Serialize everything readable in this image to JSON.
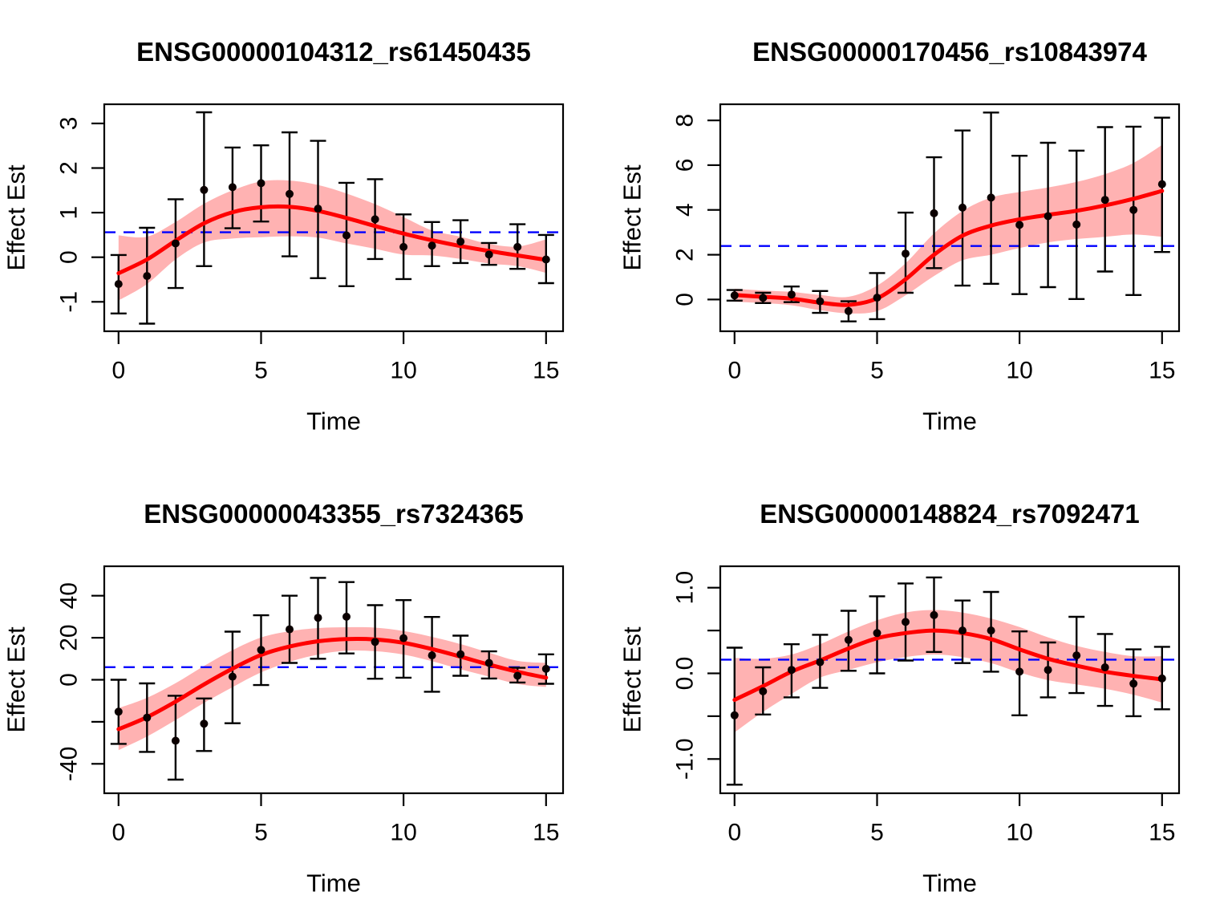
{
  "figure": {
    "colors": {
      "background": "#FFFFFF",
      "smooth_curve": "#FF0000",
      "confidence_band": "rgba(255,0,0,0.30)",
      "error_bar": "#000000",
      "data_point": "#0B0000",
      "threshold_line": "#0000FF",
      "axis": "#000000"
    }
  },
  "chart_data": [
    {
      "type": "scatter",
      "subtype": "points-errorbars-smooth-band",
      "title": "ENSG00000104312_rs61450435",
      "xlabel": "Time",
      "ylabel": "Effect Est",
      "x": [
        0,
        1,
        2,
        3,
        4,
        5,
        6,
        7,
        8,
        9,
        10,
        11,
        12,
        13,
        14,
        15
      ],
      "points": [
        -0.6,
        -0.42,
        0.31,
        1.51,
        1.57,
        1.66,
        1.42,
        1.09,
        0.49,
        0.85,
        0.23,
        0.26,
        0.35,
        0.06,
        0.23,
        -0.05
      ],
      "ci_low": [
        -1.26,
        -1.49,
        -0.69,
        -0.2,
        0.65,
        0.8,
        0.02,
        -0.47,
        -0.65,
        -0.04,
        -0.49,
        -0.2,
        -0.13,
        -0.17,
        -0.26,
        -0.58
      ],
      "ci_high": [
        0.05,
        0.66,
        1.3,
        3.25,
        2.46,
        2.51,
        2.8,
        2.61,
        1.67,
        1.75,
        0.96,
        0.79,
        0.83,
        0.32,
        0.74,
        0.5
      ],
      "smooth": [
        -0.36,
        -0.05,
        0.37,
        0.76,
        1.01,
        1.12,
        1.13,
        1.04,
        0.88,
        0.7,
        0.53,
        0.38,
        0.25,
        0.14,
        0.04,
        -0.06
      ],
      "band_low": [
        -0.97,
        -0.6,
        -0.05,
        0.33,
        0.42,
        0.45,
        0.47,
        0.44,
        0.31,
        0.19,
        0.06,
        0.04,
        -0.04,
        -0.14,
        -0.2,
        -0.35
      ],
      "band_high": [
        0.49,
        0.46,
        0.79,
        1.2,
        1.5,
        1.7,
        1.72,
        1.62,
        1.43,
        1.19,
        0.9,
        0.6,
        0.46,
        0.3,
        0.24,
        0.4
      ],
      "threshold": 0.56,
      "xlim": [
        -0.5,
        15.6
      ],
      "ylim": [
        -1.66,
        3.43
      ],
      "xticks": [
        0,
        5,
        10,
        15
      ],
      "xtick_labels": [
        "0",
        "5",
        "10",
        "15"
      ],
      "yticks": [
        -1,
        0,
        1,
        2,
        3
      ],
      "ytick_labels": [
        "-1",
        "0",
        "1",
        "2",
        "3"
      ],
      "grid": false,
      "legend": null
    },
    {
      "type": "scatter",
      "subtype": "points-errorbars-smooth-band",
      "title": "ENSG00000170456_rs10843974",
      "xlabel": "Time",
      "ylabel": "Effect Est",
      "x": [
        0,
        1,
        2,
        3,
        4,
        5,
        6,
        7,
        8,
        9,
        10,
        11,
        12,
        13,
        14,
        15
      ],
      "points": [
        0.18,
        0.07,
        0.22,
        -0.08,
        -0.52,
        0.08,
        2.05,
        3.85,
        4.1,
        4.55,
        3.33,
        3.72,
        3.35,
        4.45,
        4.0,
        5.15
      ],
      "ci_low": [
        -0.05,
        -0.16,
        -0.12,
        -0.6,
        -0.98,
        -0.88,
        0.3,
        1.4,
        0.62,
        0.7,
        0.24,
        0.55,
        0.02,
        1.25,
        0.2,
        2.12
      ],
      "ci_high": [
        0.42,
        0.3,
        0.58,
        0.38,
        -0.08,
        1.18,
        3.88,
        6.35,
        7.55,
        8.35,
        6.42,
        7.0,
        6.65,
        7.7,
        7.72,
        8.12
      ],
      "smooth": [
        0.2,
        0.12,
        0.04,
        -0.14,
        -0.24,
        0.05,
        0.9,
        2.0,
        2.85,
        3.3,
        3.58,
        3.78,
        3.96,
        4.2,
        4.5,
        4.85
      ],
      "band_low": [
        -0.1,
        -0.16,
        -0.26,
        -0.48,
        -0.62,
        -0.52,
        0.18,
        1.05,
        1.75,
        2.0,
        2.3,
        2.55,
        2.7,
        2.8,
        2.9,
        2.8
      ],
      "band_high": [
        0.48,
        0.4,
        0.34,
        0.2,
        0.12,
        0.62,
        1.62,
        2.95,
        3.95,
        4.55,
        4.8,
        5.0,
        5.25,
        5.6,
        6.1,
        6.9
      ],
      "threshold": 2.39,
      "xlim": [
        -0.5,
        15.6
      ],
      "ylim": [
        -1.42,
        8.72
      ],
      "xticks": [
        0,
        5,
        10,
        15
      ],
      "xtick_labels": [
        "0",
        "5",
        "10",
        "15"
      ],
      "yticks": [
        0,
        2,
        4,
        6,
        8
      ],
      "ytick_labels": [
        "0",
        "2",
        "4",
        "6",
        "8"
      ],
      "grid": false,
      "legend": null
    },
    {
      "type": "scatter",
      "subtype": "points-errorbars-smooth-band",
      "title": "ENSG00000043355_rs7324365",
      "xlabel": "Time",
      "ylabel": "Effect Est",
      "x": [
        0,
        1,
        2,
        3,
        4,
        5,
        6,
        7,
        8,
        9,
        10,
        11,
        12,
        13,
        14,
        15
      ],
      "points": [
        -15.2,
        -18.0,
        -29.0,
        -20.9,
        1.5,
        14.2,
        24.0,
        29.5,
        30.0,
        18.0,
        19.8,
        11.6,
        12.1,
        8.0,
        1.9,
        5.2
      ],
      "ci_low": [
        -30.5,
        -34.3,
        -47.5,
        -33.9,
        -20.7,
        -2.5,
        8.0,
        10.0,
        12.5,
        0.5,
        1.0,
        -5.7,
        1.9,
        0.6,
        -1.3,
        -1.9
      ],
      "ci_high": [
        0.0,
        -1.7,
        -7.6,
        -8.9,
        22.9,
        30.7,
        40.0,
        48.5,
        46.5,
        35.5,
        37.9,
        29.9,
        21.0,
        13.5,
        5.7,
        12.1
      ],
      "smooth": [
        -23.5,
        -17.8,
        -10.4,
        -2.2,
        5.3,
        11.8,
        15.8,
        18.3,
        19.4,
        19.2,
        17.6,
        14.6,
        11.0,
        7.2,
        3.8,
        1.0
      ],
      "band_low": [
        -33.5,
        -27.0,
        -19.2,
        -11.0,
        -3.5,
        3.5,
        8.5,
        12.0,
        13.8,
        13.6,
        12.0,
        8.8,
        5.0,
        1.5,
        -2.0,
        -3.4
      ],
      "band_high": [
        -13.5,
        -8.6,
        -1.6,
        6.6,
        14.1,
        20.1,
        23.1,
        24.6,
        25.0,
        24.8,
        23.2,
        20.4,
        17.0,
        12.9,
        9.0,
        8.0
      ],
      "threshold": 6.0,
      "xlim": [
        -0.5,
        15.6
      ],
      "ylim": [
        -54,
        54
      ],
      "xticks": [
        0,
        5,
        10,
        15
      ],
      "xtick_labels": [
        "0",
        "5",
        "10",
        "15"
      ],
      "yticks": [
        -40,
        -20,
        0,
        20,
        40
      ],
      "ytick_labels": [
        "-40",
        "",
        "0",
        "20",
        "40"
      ],
      "grid": false,
      "legend": null
    },
    {
      "type": "scatter",
      "subtype": "points-errorbars-smooth-band",
      "title": "ENSG00000148824_rs7092471",
      "xlabel": "Time",
      "ylabel": "Effect Est",
      "x": [
        0,
        1,
        2,
        3,
        4,
        5,
        6,
        7,
        8,
        9,
        10,
        11,
        12,
        13,
        14,
        15
      ],
      "points": [
        -0.49,
        -0.21,
        0.04,
        0.13,
        0.39,
        0.47,
        0.6,
        0.68,
        0.5,
        0.5,
        0.02,
        0.04,
        0.21,
        0.07,
        -0.12,
        -0.06
      ],
      "ci_low": [
        -1.3,
        -0.48,
        -0.28,
        -0.17,
        0.03,
        0.0,
        0.15,
        0.25,
        0.12,
        0.02,
        -0.49,
        -0.28,
        -0.23,
        -0.38,
        -0.5,
        -0.42
      ],
      "ci_high": [
        0.3,
        0.07,
        0.34,
        0.45,
        0.73,
        0.9,
        1.05,
        1.12,
        0.85,
        0.95,
        0.49,
        0.36,
        0.66,
        0.46,
        0.28,
        0.31
      ],
      "smooth": [
        -0.31,
        -0.15,
        0.02,
        0.15,
        0.29,
        0.41,
        0.47,
        0.5,
        0.47,
        0.4,
        0.28,
        0.17,
        0.09,
        0.02,
        -0.03,
        -0.07
      ],
      "band_low": [
        -0.69,
        -0.45,
        -0.24,
        -0.05,
        0.04,
        0.13,
        0.19,
        0.22,
        0.19,
        0.12,
        0.01,
        -0.08,
        -0.13,
        -0.18,
        -0.25,
        -0.34
      ],
      "band_high": [
        0.18,
        0.17,
        0.22,
        0.34,
        0.49,
        0.62,
        0.71,
        0.74,
        0.71,
        0.64,
        0.54,
        0.42,
        0.32,
        0.25,
        0.2,
        0.2
      ],
      "threshold": 0.16,
      "xlim": [
        -0.5,
        15.6
      ],
      "ylim": [
        -1.4,
        1.25
      ],
      "xticks": [
        0,
        5,
        10,
        15
      ],
      "xtick_labels": [
        "0",
        "5",
        "10",
        "15"
      ],
      "yticks": [
        -1,
        -0.5,
        0,
        0.5,
        1
      ],
      "ytick_labels": [
        "-1.0",
        "",
        "0.0",
        "",
        "1.0"
      ],
      "grid": false,
      "legend": null
    }
  ]
}
